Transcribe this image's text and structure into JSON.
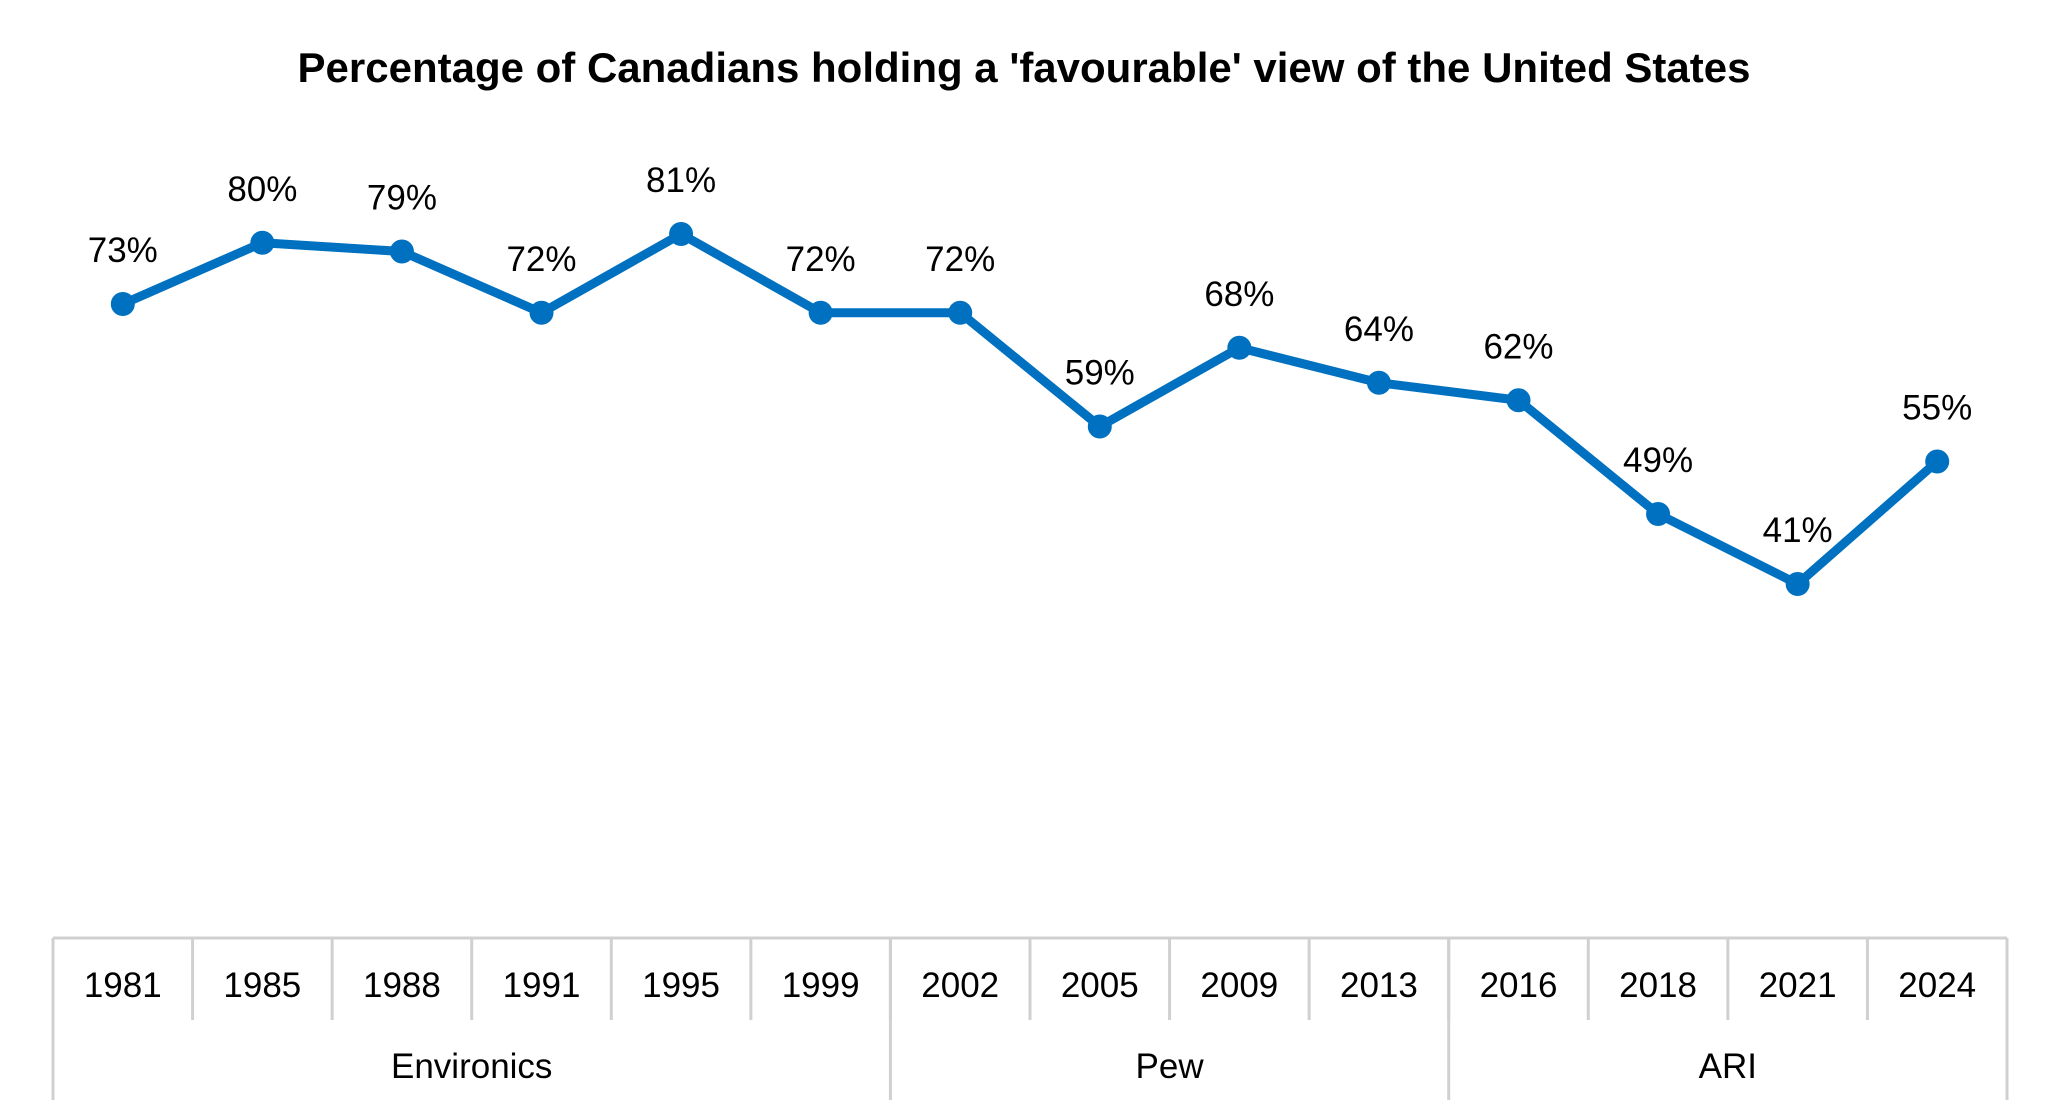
{
  "chart_data": {
    "type": "line",
    "title": "Percentage of Canadians holding a 'favourable' view of the United States",
    "categories": [
      "1981",
      "1985",
      "1988",
      "1991",
      "1995",
      "1999",
      "2002",
      "2005",
      "2009",
      "2013",
      "2016",
      "2018",
      "2021",
      "2024"
    ],
    "values": [
      73,
      80,
      79,
      72,
      81,
      72,
      72,
      59,
      68,
      64,
      62,
      49,
      41,
      55
    ],
    "data_labels": [
      "73%",
      "80%",
      "79%",
      "72%",
      "81%",
      "72%",
      "72%",
      "59%",
      "68%",
      "64%",
      "62%",
      "49%",
      "41%",
      "55%"
    ],
    "groups": [
      {
        "name": "Environics",
        "categories": [
          "1981",
          "1985",
          "1988",
          "1991",
          "1995",
          "1999"
        ]
      },
      {
        "name": "Pew",
        "categories": [
          "2002",
          "2005",
          "2009",
          "2013"
        ]
      },
      {
        "name": "ARI",
        "categories": [
          "2016",
          "2018",
          "2021",
          "2024"
        ]
      }
    ],
    "ylim": [
      0,
      90
    ],
    "grid": false,
    "legend": "none",
    "colors": {
      "line": "#0070c0",
      "axis": "#d0d0d0"
    }
  }
}
